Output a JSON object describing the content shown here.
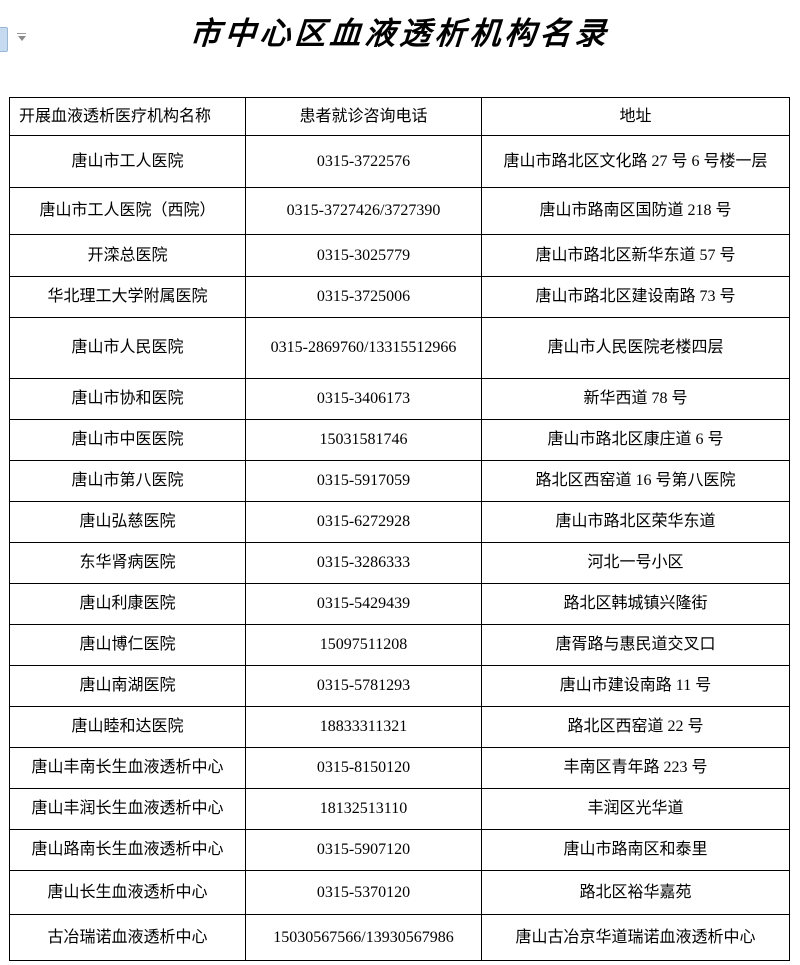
{
  "title": "市中心区血液透析机构名录",
  "paste_options": {
    "icon": "clipboard-with-chevron-down"
  },
  "colors": {
    "background": "#ffffff",
    "text": "#000000",
    "table_border": "#000000",
    "paste_icon_blue": "#c6dbef",
    "caret_gray": "#8a8a8a"
  },
  "table": {
    "headers": [
      "开展血液透析医疗机构名称",
      "患者就诊咨询电话",
      "地址"
    ],
    "rows": [
      {
        "name": "唐山市工人医院",
        "phone": "0315-3722576",
        "address": "唐山市路北区文化路 27 号 6 号楼一层"
      },
      {
        "name": "唐山市工人医院（西院）",
        "phone": "0315-3727426/3727390",
        "address": "唐山市路南区国防道 218 号"
      },
      {
        "name": "开滦总医院",
        "phone": "0315-3025779",
        "address": "唐山市路北区新华东道 57 号"
      },
      {
        "name": "华北理工大学附属医院",
        "phone": "0315-3725006",
        "address": "唐山市路北区建设南路 73 号"
      },
      {
        "name": "唐山市人民医院",
        "phone": "0315-2869760/13315512966",
        "address": "唐山市人民医院老楼四层"
      },
      {
        "name": "唐山市协和医院",
        "phone": "0315-3406173",
        "address": "新华西道 78 号"
      },
      {
        "name": "唐山市中医医院",
        "phone": "15031581746",
        "address": "唐山市路北区康庄道 6 号"
      },
      {
        "name": "唐山市第八医院",
        "phone": "0315-5917059",
        "address": "路北区西窑道 16 号第八医院"
      },
      {
        "name": "唐山弘慈医院",
        "phone": "0315-6272928",
        "address": "唐山市路北区荣华东道"
      },
      {
        "name": "东华肾病医院",
        "phone": "0315-3286333",
        "address": "河北一号小区"
      },
      {
        "name": "唐山利康医院",
        "phone": "0315-5429439",
        "address": "路北区韩城镇兴隆街"
      },
      {
        "name": "唐山博仁医院",
        "phone": "15097511208",
        "address": "唐胥路与惠民道交叉口"
      },
      {
        "name": "唐山南湖医院",
        "phone": "0315-5781293",
        "address": "唐山市建设南路 11 号"
      },
      {
        "name": "唐山睦和达医院",
        "phone": "18833311321",
        "address": "路北区西窑道 22 号"
      },
      {
        "name": "唐山丰南长生血液透析中心",
        "phone": "0315-8150120",
        "address": "丰南区青年路 223 号"
      },
      {
        "name": "唐山丰润长生血液透析中心",
        "phone": "18132513110",
        "address": "丰润区光华道"
      },
      {
        "name": "唐山路南长生血液透析中心",
        "phone": "0315-5907120",
        "address": "唐山市路南区和泰里"
      },
      {
        "name": "唐山长生血液透析中心",
        "phone": "0315-5370120",
        "address": "路北区裕华嘉苑"
      },
      {
        "name": "古冶瑞诺血液透析中心",
        "phone": "15030567566/13930567986",
        "address": "唐山古冶京华道瑞诺血液透析中心"
      }
    ]
  }
}
